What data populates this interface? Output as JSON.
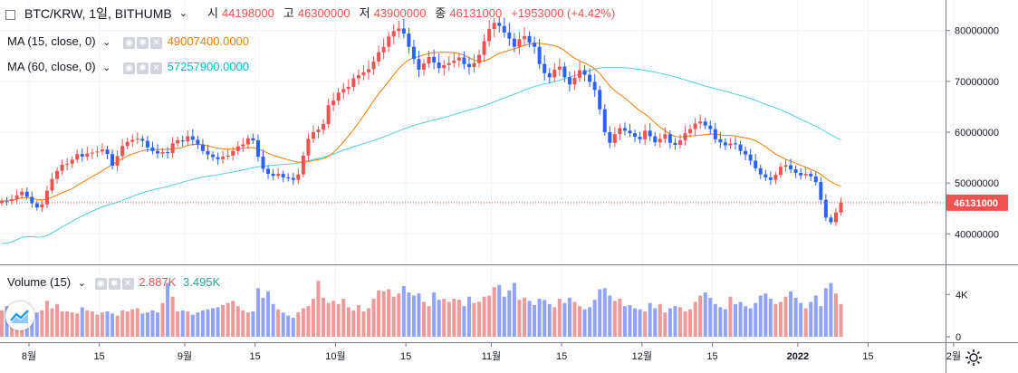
{
  "header": {
    "symbol": "BTC/KRW, 1일, BITHUMB",
    "open_label": "시",
    "open_value": "44198000",
    "high_label": "고",
    "high_value": "46300000",
    "low_label": "저",
    "low_value": "43900000",
    "close_label": "종",
    "close_value": "46131000",
    "change": "+1953000 (+4.42%)"
  },
  "indicators": [
    {
      "label": "MA (15, close, 0)",
      "value": "49007400.0000",
      "color": "#f57c00"
    },
    {
      "label": "MA (60, close, 0)",
      "value": "57257900.0000",
      "color": "#00bcd4"
    }
  ],
  "volume_legend": {
    "label": "Volume (15)",
    "value1": "2.887K",
    "value2": "3.495K"
  },
  "colors": {
    "up": "#ef5350",
    "down": "#2962ff",
    "up_vol": "#ef9a9a",
    "down_vol": "#90a4ff",
    "ma15": "#f57c00",
    "ma60": "#4dd0e1",
    "price_line": "#ef5350"
  },
  "chart_data": {
    "type": "candlestick",
    "price_axis_ticks": [
      "80000000",
      "70000000",
      "60000000",
      "50000000",
      "40000000"
    ],
    "price_axis_values": [
      80000000,
      70000000,
      60000000,
      50000000,
      40000000
    ],
    "current_price_label": "46131000",
    "current_price": 46131000,
    "price_range": [
      34000000,
      86000000
    ],
    "volume_axis_ticks": [
      "4K",
      "0"
    ],
    "volume_axis_values": [
      4000,
      0
    ],
    "volume_range": [
      0,
      6000
    ],
    "x_tick_labels": [
      "8월",
      "15",
      "9월",
      "15",
      "10월",
      "15",
      "11월",
      "15",
      "12월",
      "15",
      "2022",
      "15",
      "2월"
    ],
    "x_tick_day_index": [
      0,
      14,
      31,
      45,
      61,
      75,
      92,
      106,
      122,
      136,
      153,
      167,
      184
    ],
    "first_day": "2021-08-01",
    "closes": [
      46500000,
      46400000,
      46800000,
      47600000,
      48300000,
      47300000,
      46000000,
      45200000,
      45800000,
      48500000,
      50800000,
      52400000,
      53600000,
      53800000,
      54600000,
      55700000,
      55200000,
      55800000,
      56000000,
      56200000,
      56600000,
      55700000,
      53400000,
      55300000,
      57300000,
      58100000,
      58500000,
      58700000,
      58300000,
      57000000,
      56300000,
      55800000,
      56100000,
      55900000,
      57800000,
      58400000,
      58200000,
      59200000,
      58500000,
      57600000,
      56300000,
      55600000,
      55100000,
      54700000,
      55200000,
      55400000,
      56300000,
      57200000,
      57600000,
      58800000,
      58400000,
      55200000,
      52800000,
      51800000,
      51400000,
      51800000,
      51100000,
      51000000,
      50600000,
      51700000,
      55400000,
      58700000,
      60000000,
      60500000,
      61600000,
      65300000,
      66200000,
      67800000,
      68500000,
      68900000,
      70600000,
      71200000,
      71800000,
      72400000,
      73900000,
      75700000,
      76800000,
      78800000,
      79900000,
      80400000,
      79400000,
      76800000,
      74400000,
      72300000,
      73500000,
      74800000,
      73700000,
      72600000,
      73200000,
      73600000,
      74100000,
      74700000,
      73400000,
      72800000,
      73600000,
      75200000,
      77900000,
      80300000,
      81500000,
      80900000,
      79600000,
      78400000,
      76800000,
      78300000,
      78900000,
      77600000,
      76800000,
      73400000,
      71600000,
      70800000,
      72300000,
      72900000,
      70800000,
      69400000,
      70700000,
      72200000,
      71300000,
      69900000,
      68300000,
      64500000,
      60000000,
      57900000,
      59600000,
      60800000,
      60300000,
      59800000,
      59100000,
      58600000,
      60300000,
      59200000,
      58000000,
      58700000,
      59600000,
      57900000,
      57500000,
      58400000,
      59800000,
      60600000,
      61700000,
      62100000,
      61300000,
      60600000,
      58600000,
      58000000,
      57400000,
      57800000,
      57600000,
      56300000,
      55600000,
      54400000,
      52900000,
      51700000,
      51100000,
      50600000,
      51600000,
      53200000,
      53500000,
      52700000,
      52000000,
      51500000,
      51800000,
      51300000,
      50200000,
      46700000,
      43200000,
      42300000,
      44198000,
      46131000
    ],
    "volumes": [
      2500,
      2900,
      2000,
      2300,
      2200,
      2700,
      2100,
      2300,
      2500,
      3400,
      2700,
      3100,
      2400,
      2400,
      2300,
      2200,
      2800,
      2500,
      2400,
      2100,
      2300,
      2400,
      2200,
      2000,
      2500,
      2400,
      2600,
      2700,
      2200,
      2300,
      2500,
      2300,
      3200,
      5100,
      3800,
      2400,
      2500,
      2400,
      2100,
      2300,
      2500,
      2600,
      2700,
      2800,
      3000,
      3200,
      3400,
      2900,
      2500,
      2300,
      2400,
      4600,
      3700,
      4300,
      3100,
      2600,
      2300,
      2000,
      1800,
      2300,
      2700,
      2900,
      3600,
      5300,
      3700,
      3200,
      3400,
      3100,
      3600,
      2800,
      2500,
      3000,
      2400,
      2700,
      3600,
      4400,
      4300,
      4500,
      3800,
      4100,
      4800,
      4200,
      3900,
      4100,
      3300,
      2900,
      4200,
      3500,
      3600,
      3300,
      3600,
      3500,
      2900,
      3800,
      3200,
      3300,
      3800,
      3900,
      4700,
      4900,
      3800,
      4400,
      5100,
      3500,
      3700,
      3400,
      3000,
      3600,
      3500,
      3100,
      2800,
      3600,
      3200,
      3700,
      3300,
      2900,
      2600,
      2800,
      3500,
      4500,
      4600,
      3900,
      3400,
      3600,
      2900,
      3000,
      2700,
      2600,
      2400,
      3200,
      2700,
      3100,
      2300,
      2700,
      2900,
      2800,
      2400,
      2600,
      3300,
      3900,
      4200,
      3700,
      3100,
      2800,
      2600,
      3800,
      3100,
      3300,
      2900,
      2700,
      3200,
      3900,
      4100,
      3600,
      3100,
      3300,
      3800,
      4300,
      3700,
      3200,
      2700,
      3300,
      3900,
      2900,
      4600,
      5100,
      4100,
      3100,
      4700,
      2887
    ]
  }
}
